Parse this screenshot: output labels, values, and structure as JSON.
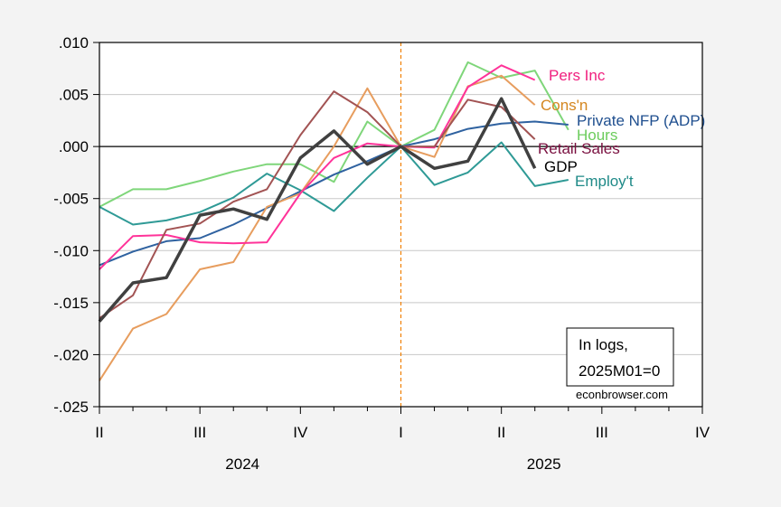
{
  "chart_data": {
    "type": "line",
    "title": "",
    "xlabel": "",
    "ylabel": "",
    "ylim": [
      -0.025,
      0.01
    ],
    "yticks": [
      ".010",
      ".005",
      ".000",
      "-.005",
      "-.010",
      "-.015",
      "-.020",
      "-.025"
    ],
    "ytick_values": [
      0.01,
      0.005,
      0.0,
      -0.005,
      -0.01,
      -0.015,
      -0.02,
      -0.025
    ],
    "grid": true,
    "x": [
      "2024M04",
      "2024M05",
      "2024M06",
      "2024M07",
      "2024M08",
      "2024M09",
      "2024M10",
      "2024M11",
      "2024M12",
      "2025M01",
      "2025M02",
      "2025M03",
      "2025M04",
      "2025M05",
      "2025M06"
    ],
    "xlim": [
      "2024M04",
      "2025M10"
    ],
    "quarter_ticks": [
      {
        "label": "II",
        "month": "2024M04"
      },
      {
        "label": "III",
        "month": "2024M07"
      },
      {
        "label": "IV",
        "month": "2024M10"
      },
      {
        "label": "I",
        "month": "2025M01"
      },
      {
        "label": "II",
        "month": "2025M04"
      },
      {
        "label": "III",
        "month": "2025M07"
      },
      {
        "label": "IV",
        "month": "2025M10"
      }
    ],
    "year_labels": [
      {
        "label": "2024",
        "month": "2024M08"
      },
      {
        "label": "2025",
        "month": "2025M05"
      }
    ],
    "reference_line": {
      "month": "2025M01",
      "style": "dashed",
      "color": "#f08000"
    },
    "zero_line": true,
    "annotation_box": [
      "In logs,",
      "2025M01=0"
    ],
    "watermark": "econbrowser.com",
    "series": [
      {
        "name": "Hours",
        "color": "#7fd67a",
        "label_color": "#6ccc5c",
        "width": 2,
        "values": [
          -0.0058,
          -0.0041,
          -0.0041,
          -0.0033,
          -0.0024,
          -0.0017,
          -0.0017,
          -0.0034,
          0.0024,
          0,
          0.0016,
          0.0081,
          0.0066,
          0.0073,
          0.0016
        ]
      },
      {
        "name": "Employ't",
        "color": "#2f9a96",
        "label_color": "#1f8a88",
        "width": 2,
        "values": [
          -0.0058,
          -0.0075,
          -0.0071,
          -0.0063,
          -0.0049,
          -0.0026,
          -0.0042,
          -0.0062,
          -0.003,
          0,
          -0.0037,
          -0.0025,
          0.0004,
          -0.0038,
          -0.0032
        ]
      },
      {
        "name": "Private NFP (ADP)",
        "color": "#2f62a0",
        "label_color": "#1f4f8f",
        "width": 2,
        "values": [
          -0.0114,
          -0.0101,
          -0.0091,
          -0.0088,
          -0.0075,
          -0.0059,
          -0.0043,
          -0.0027,
          -0.0014,
          0,
          0.0007,
          0.0017,
          0.0022,
          0.0024,
          0.0021
        ]
      },
      {
        "name": "Cons'n",
        "color": "#e79d5e",
        "label_color": "#d4861f",
        "width": 2,
        "values": [
          -0.0225,
          -0.0175,
          -0.0161,
          -0.0118,
          -0.0111,
          -0.0058,
          -0.0045,
          0.0,
          0.0056,
          0,
          -0.001,
          0.0058,
          0.0068,
          0.004,
          null
        ]
      },
      {
        "name": "Pers Inc",
        "color": "#ff3399",
        "label_color": "#f0207f",
        "width": 2,
        "values": [
          -0.0118,
          -0.0086,
          -0.0085,
          -0.0092,
          -0.0093,
          -0.0092,
          -0.0045,
          -0.0011,
          0.0003,
          0,
          -0.0001,
          0.0057,
          0.0078,
          0.0064,
          null
        ]
      },
      {
        "name": "Retail Sales",
        "color": "#a25353",
        "label_color": "#7a1040",
        "width": 2,
        "values": [
          -0.0165,
          -0.0143,
          -0.008,
          -0.0074,
          -0.0053,
          -0.0041,
          0.0011,
          0.0053,
          0.0033,
          0,
          0.0,
          0.0045,
          0.0038,
          0.0007,
          null
        ]
      },
      {
        "name": "GDP",
        "color": "#404040",
        "label_color": "#000000",
        "width": 3.5,
        "values": [
          -0.0168,
          -0.0131,
          -0.0126,
          -0.0066,
          -0.006,
          -0.007,
          -0.0011,
          0.0015,
          -0.0017,
          0,
          -0.0021,
          -0.0014,
          0.0046,
          -0.0021,
          null
        ]
      }
    ]
  }
}
